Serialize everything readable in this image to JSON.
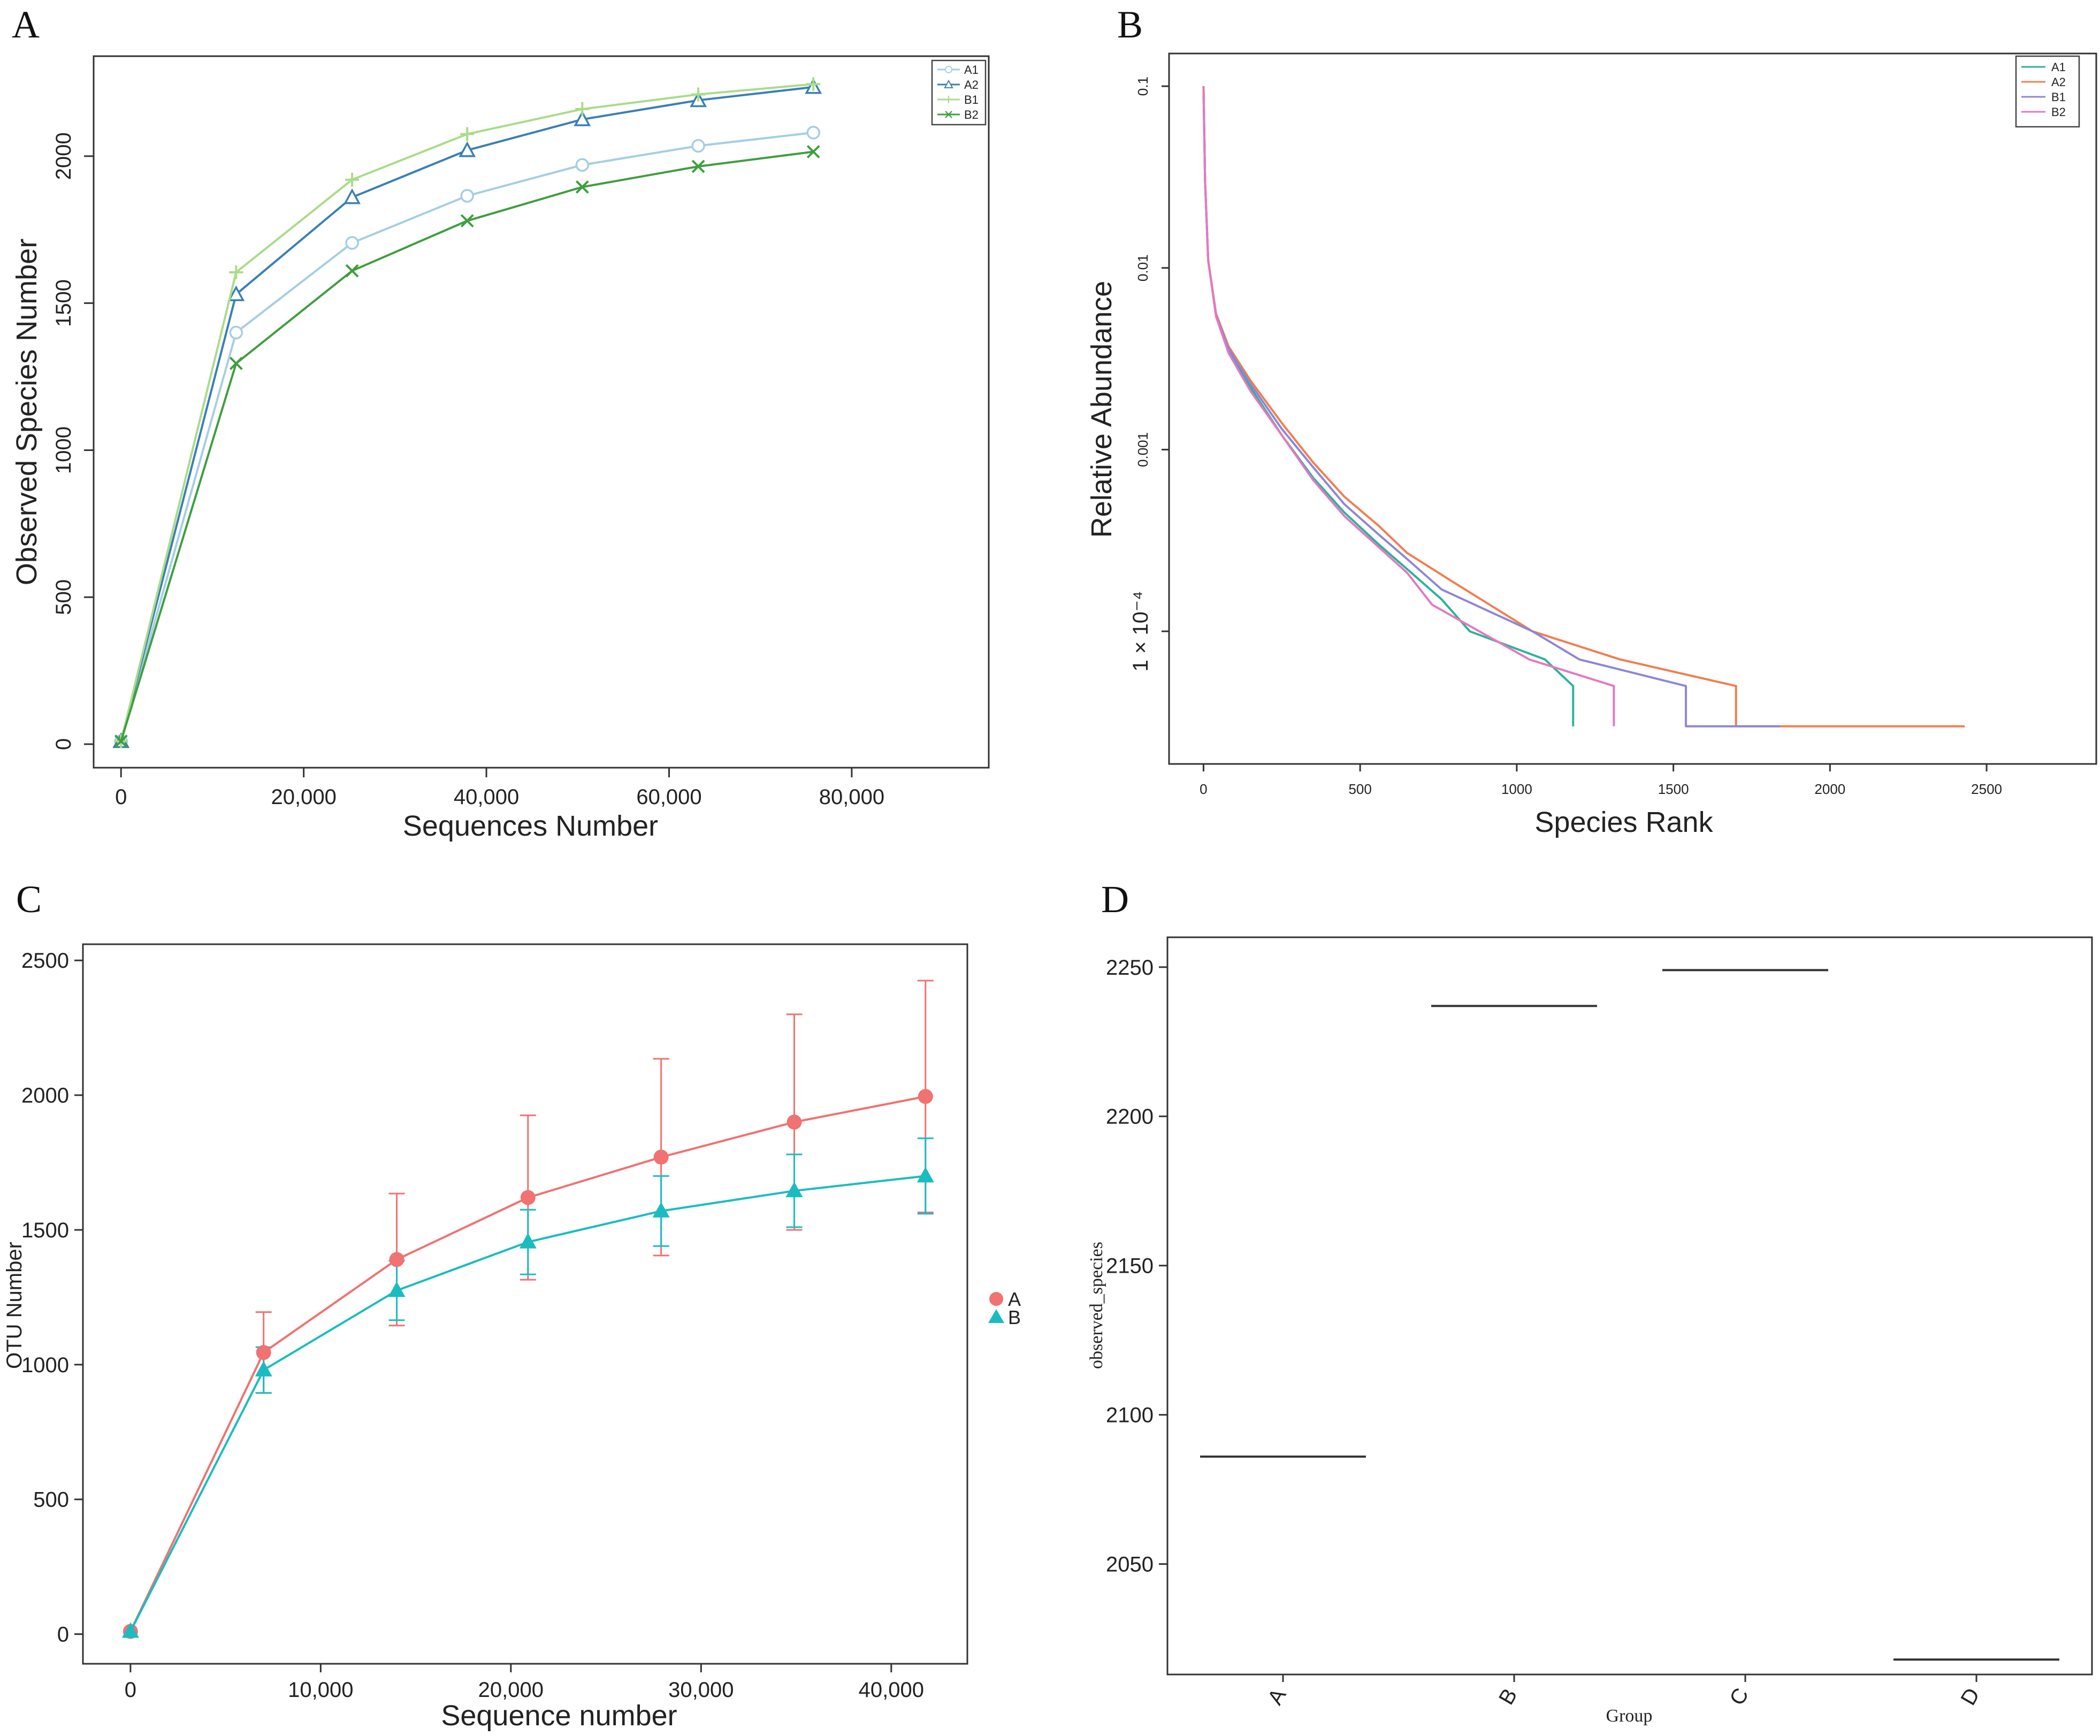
{
  "chart_data": [
    {
      "panel": "A",
      "type": "line",
      "xlabel": "Sequences Number",
      "ylabel": "Observed Species Number",
      "xlim": [
        -3000,
        95000
      ],
      "ylim": [
        -80,
        2340
      ],
      "xticks": [
        0,
        20000,
        40000,
        60000,
        80000
      ],
      "xtick_labels": [
        "0",
        "20,000",
        "40,000",
        "60,000",
        "80,000"
      ],
      "yticks": [
        0,
        500,
        1000,
        1500,
        2000
      ],
      "ytick_labels": [
        "0",
        "500",
        "1000",
        "1500",
        "2000"
      ],
      "legend_position": "top-right",
      "x": [
        0,
        12600,
        25300,
        37900,
        50500,
        63200,
        75800
      ],
      "series": [
        {
          "name": "A1",
          "color": "#a6cee3",
          "marker": "circle",
          "values": [
            10,
            1400,
            1705,
            1865,
            1970,
            2035,
            2080
          ]
        },
        {
          "name": "A2",
          "color": "#3a7fb5",
          "marker": "triangle",
          "values": [
            10,
            1530,
            1860,
            2020,
            2125,
            2190,
            2235
          ]
        },
        {
          "name": "B1",
          "color": "#a9dc8a",
          "marker": "plus",
          "values": [
            10,
            1605,
            1920,
            2075,
            2160,
            2210,
            2245
          ]
        },
        {
          "name": "B2",
          "color": "#3f9e3f",
          "marker": "cross",
          "values": [
            10,
            1295,
            1610,
            1780,
            1895,
            1965,
            2015
          ]
        }
      ]
    },
    {
      "panel": "B",
      "type": "line",
      "xlabel": "Species Rank",
      "ylabel": "Relative Abundance",
      "xlim": [
        -110,
        2850
      ],
      "yscale": "log",
      "ylim_log10": [
        -4.73,
        -0.82
      ],
      "xticks": [
        0,
        500,
        1000,
        1500,
        2000,
        2500
      ],
      "xtick_labels": [
        "0",
        "500",
        "1000",
        "1500",
        "2000",
        "2500"
      ],
      "yticks": [
        0.1,
        0.01,
        0.001,
        0.0001
      ],
      "ytick_labels": [
        "0.1",
        "0.01",
        "0.001",
        "1 × 10⁻⁴"
      ],
      "legend_position": "top-right",
      "series": [
        {
          "name": "A1",
          "color": "#2bb39a",
          "points": [
            [
              0,
              0.1
            ],
            [
              5,
              0.03
            ],
            [
              15,
              0.011
            ],
            [
              40,
              0.0055
            ],
            [
              80,
              0.0035
            ],
            [
              150,
              0.0022
            ],
            [
              250,
              0.0012
            ],
            [
              350,
              0.0007
            ],
            [
              450,
              0.00045
            ],
            [
              560,
              0.0003
            ],
            [
              650,
              0.00022
            ],
            [
              760,
              0.00015
            ],
            [
              850,
              0.0001
            ],
            [
              1090,
              7e-05
            ],
            [
              1180,
              5e-05
            ],
            [
              1180,
              3e-05
            ]
          ]
        },
        {
          "name": "A2",
          "color": "#f07f4f",
          "points": [
            [
              0,
              0.1
            ],
            [
              5,
              0.03
            ],
            [
              15,
              0.011
            ],
            [
              40,
              0.0056
            ],
            [
              80,
              0.0037
            ],
            [
              150,
              0.0024
            ],
            [
              250,
              0.0014
            ],
            [
              350,
              0.00085
            ],
            [
              450,
              0.00055
            ],
            [
              560,
              0.00038
            ],
            [
              650,
              0.00027
            ],
            [
              790,
              0.00019
            ],
            [
              1050,
              0.0001
            ],
            [
              1330,
              7e-05
            ],
            [
              1700,
              5e-05
            ],
            [
              1700,
              3e-05
            ],
            [
              2430,
              3e-05
            ]
          ]
        },
        {
          "name": "B1",
          "color": "#8f86d6",
          "points": [
            [
              0,
              0.1
            ],
            [
              5,
              0.03
            ],
            [
              15,
              0.011
            ],
            [
              40,
              0.0055
            ],
            [
              80,
              0.0036
            ],
            [
              150,
              0.0023
            ],
            [
              250,
              0.0013
            ],
            [
              350,
              0.0008
            ],
            [
              450,
              0.0005
            ],
            [
              560,
              0.00034
            ],
            [
              650,
              0.00025
            ],
            [
              760,
              0.00017
            ],
            [
              1050,
              0.0001
            ],
            [
              1200,
              7e-05
            ],
            [
              1540,
              5e-05
            ],
            [
              1540,
              3e-05
            ],
            [
              1840,
              3e-05
            ]
          ]
        },
        {
          "name": "B2",
          "color": "#e479c0",
          "points": [
            [
              0,
              0.1
            ],
            [
              5,
              0.03
            ],
            [
              15,
              0.011
            ],
            [
              40,
              0.0054
            ],
            [
              80,
              0.0034
            ],
            [
              150,
              0.0021
            ],
            [
              250,
              0.0012
            ],
            [
              350,
              0.00068
            ],
            [
              450,
              0.00043
            ],
            [
              560,
              0.00029
            ],
            [
              650,
              0.00021
            ],
            [
              730,
              0.00014
            ],
            [
              1040,
              7e-05
            ],
            [
              1310,
              5e-05
            ],
            [
              1310,
              3e-05
            ]
          ]
        }
      ]
    },
    {
      "panel": "C",
      "type": "line",
      "xlabel": "Sequence number",
      "ylabel": "OTU Number",
      "xlim": [
        -2500,
        44000
      ],
      "ylim": [
        -110,
        2560
      ],
      "xticks": [
        0,
        10000,
        20000,
        30000,
        40000
      ],
      "xtick_labels": [
        "0",
        "10,000",
        "20,000",
        "30,000",
        "40,000"
      ],
      "yticks": [
        0,
        500,
        1000,
        1500,
        2000,
        2500
      ],
      "ytick_labels": [
        "0",
        "500",
        "1000",
        "1500",
        "2000",
        "2500"
      ],
      "legend_position": "right",
      "x": [
        0,
        7000,
        14000,
        20900,
        27900,
        34900,
        41800
      ],
      "series": [
        {
          "name": "A",
          "color": "#f07272",
          "marker": "circle",
          "values": [
            10,
            1045,
            1390,
            1620,
            1770,
            1900,
            1995
          ],
          "error": [
            0,
            150,
            245,
            305,
            365,
            400,
            430
          ]
        },
        {
          "name": "B",
          "color": "#1bbcc0",
          "marker": "triangle",
          "values": [
            10,
            980,
            1275,
            1455,
            1570,
            1645,
            1700
          ],
          "error": [
            0,
            85,
            110,
            120,
            130,
            135,
            140
          ]
        }
      ]
    },
    {
      "panel": "D",
      "type": "box",
      "xlabel": "Group",
      "ylabel": "observed_species",
      "ylim": [
        2013,
        2260
      ],
      "yticks": [
        2050,
        2100,
        2150,
        2200,
        2250
      ],
      "ytick_labels": [
        "2050",
        "2100",
        "2150",
        "2200",
        "2250"
      ],
      "categories": [
        "A",
        "B",
        "C",
        "D"
      ],
      "values": [
        2086,
        2237,
        2249,
        2018
      ]
    }
  ]
}
